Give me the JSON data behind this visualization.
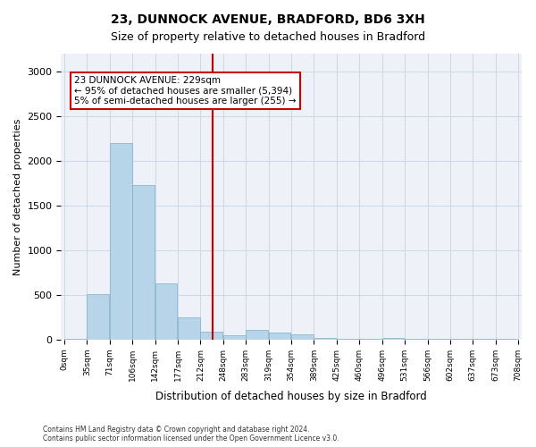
{
  "title1": "23, DUNNOCK AVENUE, BRADFORD, BD6 3XH",
  "title2": "Size of property relative to detached houses in Bradford",
  "xlabel": "Distribution of detached houses by size in Bradford",
  "ylabel": "Number of detached properties",
  "bar_values": [
    10,
    510,
    2200,
    1730,
    630,
    250,
    90,
    50,
    110,
    80,
    60,
    20,
    5,
    5,
    15,
    5,
    5,
    5,
    5,
    5
  ],
  "tick_labels": [
    "0sqm",
    "35sqm",
    "71sqm",
    "106sqm",
    "142sqm",
    "177sqm",
    "212sqm",
    "248sqm",
    "283sqm",
    "319sqm",
    "354sqm",
    "389sqm",
    "425sqm",
    "460sqm",
    "496sqm",
    "531sqm",
    "566sqm",
    "602sqm",
    "637sqm",
    "673sqm",
    "708sqm"
  ],
  "bar_color": "#b8d4e8",
  "bar_edgecolor": "#7aafc8",
  "vline_x": 229,
  "vline_color": "#cc0000",
  "annotation_text": "23 DUNNOCK AVENUE: 229sqm\n← 95% of detached houses are smaller (5,394)\n5% of semi-detached houses are larger (255) →",
  "annotation_box_color": "white",
  "annotation_box_edgecolor": "#cc0000",
  "ylim": [
    0,
    3200
  ],
  "yticks": [
    0,
    500,
    1000,
    1500,
    2000,
    2500,
    3000
  ],
  "grid_color": "#d0d8e8",
  "background_color": "#eef2f8",
  "footer_text": "Contains HM Land Registry data © Crown copyright and database right 2024.\nContains public sector information licensed under the Open Government Licence v3.0.",
  "bin_width": 35
}
